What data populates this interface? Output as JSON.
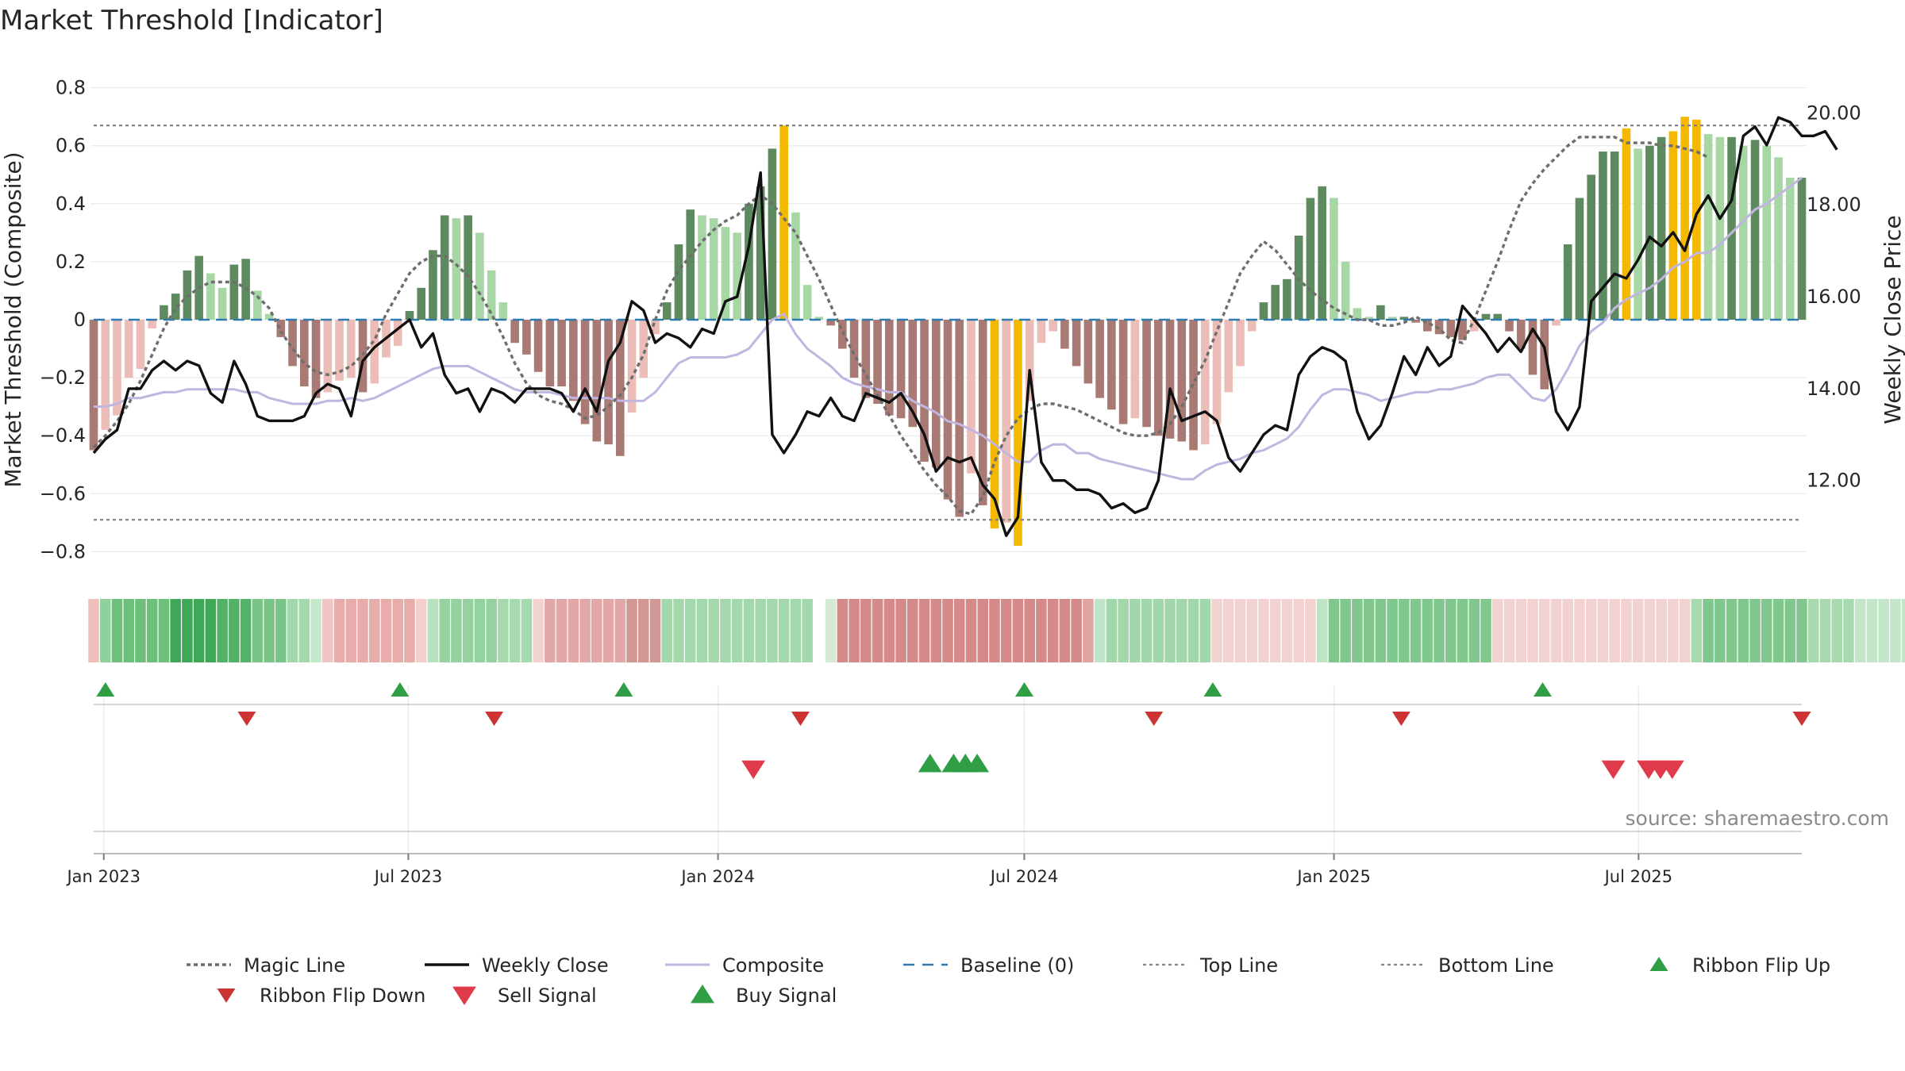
{
  "chart_data": {
    "type": "bar",
    "title": "Market Threshold [Indicator]",
    "source": "source: sharemaestro.com",
    "y_left": {
      "label": "Market Threshold (Composite)",
      "range": [
        -0.84,
        0.84
      ],
      "ticks": [
        0.8,
        0.6,
        0.4,
        0.2,
        0,
        -0.2,
        -0.4,
        -0.6,
        -0.8
      ],
      "tick_labels": [
        "0.8",
        "0.6",
        "0.4",
        "0.2",
        "0",
        "−0.2",
        "−0.4",
        "−0.6",
        "−0.8"
      ]
    },
    "y_right": {
      "label": "Weekly Close Price",
      "range": [
        10.2,
        20.8
      ],
      "ticks": [
        20,
        18,
        16,
        14,
        12
      ],
      "tick_labels": [
        "20.00",
        "18.00",
        "16.00",
        "14.00",
        "12.00"
      ]
    },
    "x_axis": {
      "start": "2022-12-26",
      "end": "2025-10-06",
      "ticks": [
        {
          "date": "2023-01-01",
          "label": "Jan 2023"
        },
        {
          "date": "2023-07-01",
          "label": "Jul 2023"
        },
        {
          "date": "2024-01-01",
          "label": "Jan 2024"
        },
        {
          "date": "2024-07-01",
          "label": "Jul 2024"
        },
        {
          "date": "2025-01-01",
          "label": "Jan 2025"
        },
        {
          "date": "2025-07-01",
          "label": "Jul 2025"
        }
      ]
    },
    "top_line": 0.67,
    "bottom_line": -0.69,
    "baseline": 0,
    "composite_bars": [
      -0.45,
      -0.38,
      -0.33,
      -0.2,
      -0.17,
      -0.03,
      0.05,
      0.09,
      0.17,
      0.22,
      0.16,
      0.11,
      0.19,
      0.21,
      0.1,
      0.02,
      -0.06,
      -0.16,
      -0.23,
      -0.27,
      -0.25,
      -0.21,
      -0.2,
      -0.25,
      -0.22,
      -0.13,
      -0.09,
      0.03,
      0.11,
      0.24,
      0.36,
      0.35,
      0.36,
      0.3,
      0.17,
      0.06,
      -0.08,
      -0.12,
      -0.18,
      -0.23,
      -0.23,
      -0.28,
      -0.36,
      -0.42,
      -0.43,
      -0.47,
      -0.32,
      -0.2,
      -0.05,
      0.06,
      0.26,
      0.38,
      0.36,
      0.35,
      0.32,
      0.3,
      0.4,
      0.46,
      0.59,
      0.67,
      0.37,
      0.12,
      0.01,
      -0.02,
      -0.1,
      -0.2,
      -0.27,
      -0.29,
      -0.33,
      -0.34,
      -0.37,
      -0.49,
      -0.51,
      -0.62,
      -0.68,
      -0.53,
      -0.64,
      -0.72,
      -0.7,
      -0.78,
      -0.28,
      -0.08,
      -0.04,
      -0.1,
      -0.16,
      -0.22,
      -0.27,
      -0.31,
      -0.36,
      -0.34,
      -0.37,
      -0.4,
      -0.41,
      -0.42,
      -0.45,
      -0.43,
      -0.36,
      -0.25,
      -0.16,
      -0.04,
      0.06,
      0.12,
      0.14,
      0.29,
      0.42,
      0.46,
      0.42,
      0.2,
      0.04,
      0.01,
      0.05,
      0.01,
      0.01,
      -0.01,
      -0.04,
      -0.05,
      -0.06,
      -0.07,
      -0.04,
      0.02,
      0.02,
      -0.04,
      -0.1,
      -0.19,
      -0.24,
      -0.02,
      0.26,
      0.42,
      0.5,
      0.58,
      0.58,
      0.66,
      0.59,
      0.6,
      0.63,
      0.65,
      0.7,
      0.69,
      0.64,
      0.63,
      0.63,
      0.6,
      0.62,
      0.6,
      0.56,
      0.49,
      0.49
    ],
    "composite_line": [
      -0.3,
      -0.3,
      -0.29,
      -0.27,
      -0.27,
      -0.26,
      -0.25,
      -0.25,
      -0.24,
      -0.24,
      -0.24,
      -0.24,
      -0.24,
      -0.25,
      -0.25,
      -0.27,
      -0.28,
      -0.29,
      -0.29,
      -0.29,
      -0.28,
      -0.28,
      -0.27,
      -0.28,
      -0.27,
      -0.25,
      -0.23,
      -0.21,
      -0.19,
      -0.17,
      -0.16,
      -0.16,
      -0.16,
      -0.18,
      -0.2,
      -0.22,
      -0.24,
      -0.25,
      -0.25,
      -0.25,
      -0.26,
      -0.27,
      -0.27,
      -0.27,
      -0.27,
      -0.28,
      -0.28,
      -0.28,
      -0.25,
      -0.2,
      -0.15,
      -0.13,
      -0.13,
      -0.13,
      -0.13,
      -0.12,
      -0.1,
      -0.05,
      0.0,
      0.02,
      -0.05,
      -0.1,
      -0.13,
      -0.16,
      -0.2,
      -0.22,
      -0.23,
      -0.24,
      -0.25,
      -0.25,
      -0.28,
      -0.3,
      -0.32,
      -0.35,
      -0.36,
      -0.38,
      -0.4,
      -0.43,
      -0.46,
      -0.49,
      -0.49,
      -0.45,
      -0.43,
      -0.43,
      -0.46,
      -0.46,
      -0.48,
      -0.49,
      -0.5,
      -0.51,
      -0.52,
      -0.53,
      -0.54,
      -0.55,
      -0.55,
      -0.52,
      -0.5,
      -0.49,
      -0.48,
      -0.46,
      -0.45,
      -0.43,
      -0.41,
      -0.37,
      -0.31,
      -0.26,
      -0.24,
      -0.24,
      -0.25,
      -0.26,
      -0.28,
      -0.27,
      -0.26,
      -0.25,
      -0.25,
      -0.24,
      -0.24,
      -0.23,
      -0.22,
      -0.2,
      -0.19,
      -0.19,
      -0.23,
      -0.27,
      -0.28,
      -0.24,
      -0.17,
      -0.09,
      -0.04,
      -0.01,
      0.04,
      0.07,
      0.09,
      0.11,
      0.14,
      0.18,
      0.2,
      0.23,
      0.23,
      0.26,
      0.3,
      0.34,
      0.38,
      0.4,
      0.43,
      0.46,
      0.49
    ],
    "magic_line": [
      -0.44,
      -0.4,
      -0.35,
      -0.29,
      -0.21,
      -0.12,
      -0.03,
      0.04,
      0.08,
      0.11,
      0.13,
      0.13,
      0.13,
      0.11,
      0.08,
      0.04,
      -0.04,
      -0.1,
      -0.15,
      -0.18,
      -0.19,
      -0.18,
      -0.16,
      -0.12,
      -0.07,
      0.02,
      0.09,
      0.16,
      0.2,
      0.22,
      0.22,
      0.19,
      0.15,
      0.09,
      0.02,
      -0.06,
      -0.15,
      -0.22,
      -0.26,
      -0.28,
      -0.29,
      -0.31,
      -0.34,
      -0.33,
      -0.3,
      -0.26,
      -0.2,
      -0.12,
      0.0,
      0.1,
      0.17,
      0.22,
      0.27,
      0.31,
      0.34,
      0.36,
      0.4,
      0.43,
      0.4,
      0.35,
      0.3,
      0.22,
      0.14,
      0.05,
      -0.04,
      -0.12,
      -0.19,
      -0.26,
      -0.33,
      -0.4,
      -0.46,
      -0.52,
      -0.57,
      -0.61,
      -0.66,
      -0.67,
      -0.61,
      -0.49,
      -0.4,
      -0.34,
      -0.31,
      -0.29,
      -0.29,
      -0.3,
      -0.31,
      -0.33,
      -0.35,
      -0.37,
      -0.39,
      -0.4,
      -0.4,
      -0.39,
      -0.36,
      -0.3,
      -0.22,
      -0.14,
      -0.04,
      0.06,
      0.16,
      0.22,
      0.27,
      0.24,
      0.19,
      0.14,
      0.1,
      0.07,
      0.04,
      0.02,
      0.0,
      0.0,
      -0.02,
      -0.02,
      -0.01,
      0.01,
      -0.01,
      -0.03,
      -0.07,
      -0.08,
      0.0,
      0.1,
      0.2,
      0.31,
      0.41,
      0.47,
      0.52,
      0.56,
      0.6,
      0.63,
      0.63,
      0.63,
      0.63,
      0.61,
      0.61,
      0.61,
      0.6,
      0.6,
      0.59,
      0.58,
      0.56
    ],
    "weekly_close": [
      12.6,
      12.9,
      13.1,
      14.0,
      14.0,
      14.4,
      14.6,
      14.4,
      14.6,
      14.5,
      13.9,
      13.7,
      14.6,
      14.1,
      13.4,
      13.3,
      13.3,
      13.3,
      13.4,
      13.9,
      14.1,
      14.0,
      13.4,
      14.6,
      14.9,
      15.1,
      15.3,
      15.5,
      14.9,
      15.2,
      14.3,
      13.9,
      14.0,
      13.5,
      14.0,
      13.9,
      13.7,
      14.0,
      14.0,
      14.0,
      13.9,
      13.5,
      14.0,
      13.5,
      14.6,
      15.0,
      15.9,
      15.7,
      15.0,
      15.2,
      15.1,
      14.9,
      15.3,
      15.2,
      15.9,
      16.0,
      17.1,
      18.7,
      13.0,
      12.6,
      13.0,
      13.5,
      13.4,
      13.8,
      13.4,
      13.3,
      13.9,
      13.8,
      13.7,
      13.9,
      13.5,
      13.0,
      12.2,
      12.5,
      12.4,
      12.5,
      11.9,
      11.6,
      10.8,
      11.2,
      14.4,
      12.4,
      12.0,
      12.0,
      11.8,
      11.8,
      11.7,
      11.4,
      11.5,
      11.3,
      11.4,
      12.0,
      14.0,
      13.3,
      13.4,
      13.5,
      13.3,
      12.5,
      12.2,
      12.6,
      13.0,
      13.2,
      13.1,
      14.3,
      14.7,
      14.9,
      14.8,
      14.6,
      13.5,
      12.9,
      13.2,
      13.9,
      14.7,
      14.3,
      14.9,
      14.5,
      14.7,
      15.8,
      15.5,
      15.2,
      14.8,
      15.1,
      14.8,
      15.3,
      14.9,
      13.5,
      13.1,
      13.6,
      15.9,
      16.2,
      16.5,
      16.4,
      16.8,
      17.3,
      17.1,
      17.4,
      17.0,
      17.8,
      18.2,
      17.7,
      18.1,
      19.5,
      19.7,
      19.3,
      19.9,
      19.8,
      19.5,
      19.5,
      19.6,
      19.2
    ],
    "ribbon_tiles": [
      {
        "color": "#efbfbe",
        "count": 1
      },
      {
        "color": "#8fd19a",
        "count": 1
      },
      {
        "color": "#6cc07a",
        "count": 5
      },
      {
        "color": "#3fa857",
        "count": 4
      },
      {
        "color": "#54b268",
        "count": 3
      },
      {
        "color": "#78c487",
        "count": 3
      },
      {
        "color": "#a3d8ad",
        "count": 2
      },
      {
        "color": "#c5e8cb",
        "count": 1
      },
      {
        "color": "#f1c4c4",
        "count": 1
      },
      {
        "color": "#e8acab",
        "count": 7
      },
      {
        "color": "#f2cecd",
        "count": 1
      },
      {
        "color": "#b6e2bd",
        "count": 1
      },
      {
        "color": "#94d29f",
        "count": 5
      },
      {
        "color": "#a6d9af",
        "count": 3
      },
      {
        "color": "#f2d2d1",
        "count": 1
      },
      {
        "color": "#e2a7a6",
        "count": 7
      },
      {
        "color": "#d39896",
        "count": 3
      },
      {
        "color": "#a3d7ac",
        "count": 13
      },
      {
        "color": "#ffffff",
        "count": 1
      },
      {
        "color": "#d4e9d6",
        "count": 1
      },
      {
        "color": "#d58988",
        "count": 21
      },
      {
        "color": "#e2a4a3",
        "count": 1
      },
      {
        "color": "#bfe4c5",
        "count": 1
      },
      {
        "color": "#a2d6ab",
        "count": 9
      },
      {
        "color": "#f2d2d1",
        "count": 9
      },
      {
        "color": "#bfe4c5",
        "count": 1
      },
      {
        "color": "#80c78e",
        "count": 14
      },
      {
        "color": "#f2d2d1",
        "count": 17
      },
      {
        "color": "#a8daaf",
        "count": 1
      },
      {
        "color": "#80c78e",
        "count": 9
      },
      {
        "color": "#a8daaf",
        "count": 4
      },
      {
        "color": "#c3e6c9",
        "count": 10
      },
      {
        "color": "#f2d2d1",
        "count": 1
      }
    ],
    "markers": {
      "ribbon_flip_up": [
        "2023-01-02",
        "2023-06-26",
        "2023-11-06",
        "2024-07-01",
        "2024-10-21",
        "2025-05-05"
      ],
      "ribbon_flip_down": [
        "2023-03-27",
        "2023-08-21",
        "2024-02-19",
        "2024-09-16",
        "2025-02-10",
        "2025-10-06"
      ],
      "sell_signal": [
        "2024-01-22",
        "2025-06-16",
        "2025-07-07",
        "2025-07-14",
        "2025-07-21"
      ],
      "buy_signal": [
        "2024-05-06",
        "2024-05-20",
        "2024-05-27",
        "2024-06-03"
      ]
    },
    "colors": {
      "bar_pos_strong": "#5e8a5f",
      "bar_pos_light": "#a8d7a6",
      "bar_neg_strong": "#a97a73",
      "bar_neg_light": "#ecbdb7",
      "bar_extreme": "#f5b800",
      "weekly_close": "#111111",
      "composite": "#c0b6e0",
      "magic_line": "#6e6e6e",
      "baseline": "#2e7bb0",
      "threshold_lines": "#808080",
      "flip_up": "#2f9e44",
      "flip_down": "#cc3333",
      "sell_signal": "#e03b4a",
      "buy_signal": "#2f9e44"
    },
    "legend": [
      {
        "key": "magic",
        "label": "Magic Line",
        "icon": "dotted-line"
      },
      {
        "key": "close",
        "label": "Weekly Close",
        "icon": "solid-line"
      },
      {
        "key": "composite",
        "label": "Composite",
        "icon": "solid-line"
      },
      {
        "key": "baseline",
        "label": "Baseline (0)",
        "icon": "dashed-line"
      },
      {
        "key": "top",
        "label": "Top Line",
        "icon": "dotted-line"
      },
      {
        "key": "bottom",
        "label": "Bottom Line",
        "icon": "dotted-line"
      },
      {
        "key": "flipup",
        "label": "Ribbon Flip Up",
        "icon": "triangle-up"
      },
      {
        "key": "flipdown",
        "label": "Ribbon Flip Down",
        "icon": "triangle-down"
      },
      {
        "key": "sell",
        "label": "Sell Signal",
        "icon": "triangle-down"
      },
      {
        "key": "buy",
        "label": "Buy Signal",
        "icon": "triangle-up"
      }
    ]
  }
}
